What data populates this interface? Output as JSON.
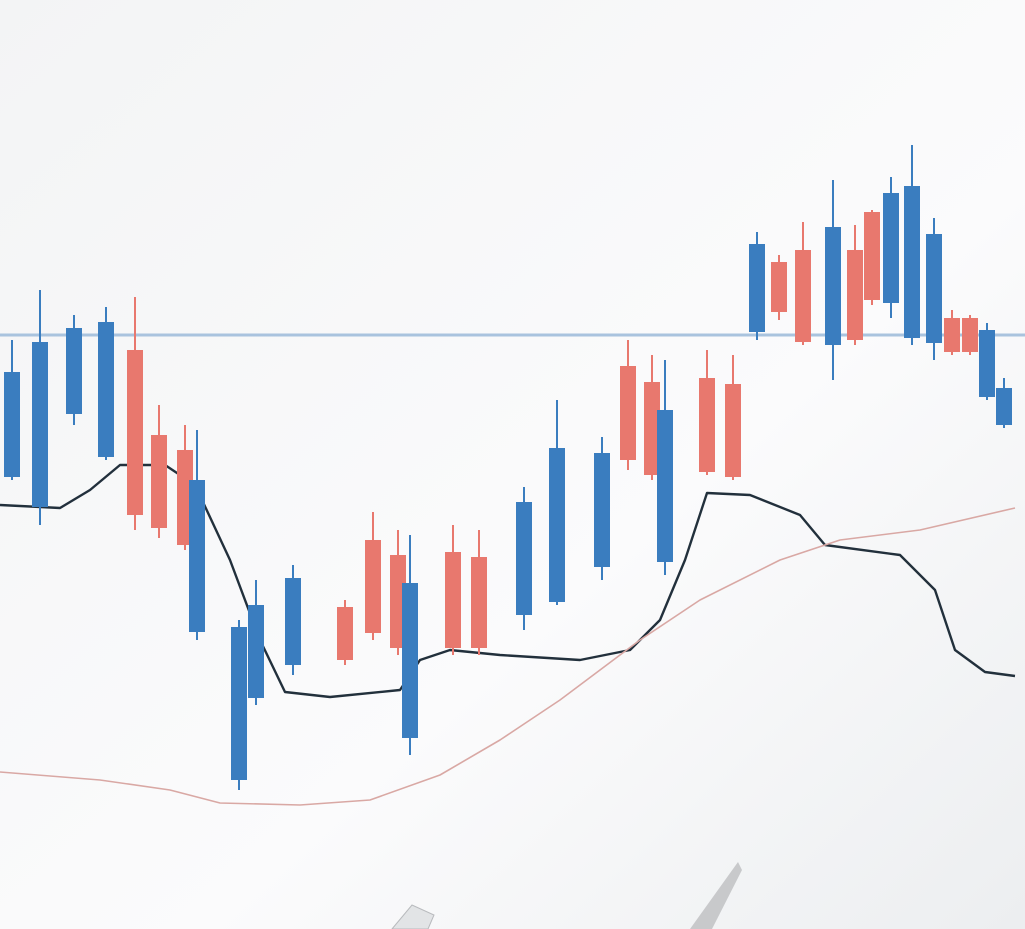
{
  "chart_data": {
    "type": "candlestick",
    "xlim": [
      0,
      102.5
    ],
    "ylim": [
      0,
      92.9
    ],
    "up_color": "#3a7dbf",
    "down_color": "#e8786e",
    "x": [
      1.2,
      4.0,
      7.4,
      10.6,
      13.5,
      15.9,
      18.5,
      19.7,
      23.9,
      25.6,
      29.3,
      34.5,
      37.3,
      39.8,
      41.0,
      45.3,
      47.9,
      52.4,
      55.7,
      60.2,
      62.8,
      65.2,
      66.5,
      70.7,
      73.3,
      75.7,
      77.9,
      80.3,
      83.3,
      85.5,
      87.2,
      89.1,
      91.2,
      93.4,
      95.2,
      97.0,
      98.7,
      100.4
    ],
    "open": [
      45.2,
      42.2,
      51.5,
      47.2,
      57.9,
      49.4,
      47.9,
      29.7,
      14.9,
      23.1,
      26.4,
      32.2,
      38.9,
      37.4,
      19.1,
      37.7,
      37.2,
      31.4,
      32.7,
      36.2,
      56.3,
      54.7,
      36.7,
      55.1,
      54.5,
      59.7,
      66.7,
      67.9,
      58.4,
      67.9,
      71.7,
      62.6,
      59.1,
      58.6,
      61.1,
      61.1,
      53.2,
      50.4
    ],
    "high": [
      58.9,
      63.9,
      61.4,
      62.2,
      63.2,
      52.4,
      50.4,
      49.9,
      30.9,
      34.9,
      36.4,
      32.9,
      41.7,
      39.9,
      39.4,
      40.4,
      39.9,
      44.2,
      52.9,
      49.2,
      58.9,
      57.4,
      56.9,
      57.9,
      57.4,
      69.7,
      67.4,
      70.7,
      74.9,
      70.4,
      71.9,
      75.2,
      78.4,
      71.1,
      61.9,
      61.4,
      60.6,
      55.1
    ],
    "low": [
      44.9,
      40.4,
      50.4,
      46.9,
      39.9,
      39.1,
      37.9,
      28.9,
      13.9,
      22.4,
      25.4,
      26.4,
      28.9,
      27.4,
      17.4,
      27.4,
      27.4,
      29.9,
      32.4,
      34.9,
      45.9,
      44.9,
      35.4,
      45.4,
      44.9,
      58.9,
      60.9,
      58.4,
      54.9,
      58.4,
      62.4,
      61.1,
      58.4,
      56.9,
      57.4,
      57.4,
      52.9,
      50.1
    ],
    "close": [
      55.7,
      58.7,
      60.1,
      60.7,
      41.4,
      40.1,
      38.4,
      44.9,
      30.2,
      32.4,
      35.1,
      26.9,
      29.6,
      28.1,
      34.6,
      28.1,
      28.1,
      42.7,
      48.1,
      47.6,
      46.9,
      45.4,
      51.9,
      45.7,
      45.2,
      68.5,
      61.7,
      58.7,
      70.2,
      58.9,
      62.9,
      73.6,
      74.3,
      69.5,
      57.7,
      57.7,
      59.9,
      54.1
    ],
    "hline": {
      "value": 59.4,
      "color": "#a9c3de"
    },
    "lines": [
      {
        "color": "#22303c",
        "x": [
          0,
          6,
          9,
          12,
          16.5,
          19.5,
          23,
          26,
          28.5,
          33,
          40,
          42,
          45,
          50,
          58,
          63,
          66,
          68.5,
          70.7,
          75,
          80,
          82.5,
          90,
          93.5,
          95.5,
          98.5,
          101.5
        ],
        "values": [
          42.4,
          42.1,
          43.9,
          46.4,
          46.4,
          44.4,
          36.9,
          28.9,
          23.7,
          23.2,
          23.9,
          26.9,
          27.9,
          27.4,
          26.9,
          27.9,
          30.9,
          36.9,
          43.6,
          43.4,
          41.4,
          38.4,
          37.4,
          33.9,
          27.9,
          25.7,
          25.3
        ]
      },
      {
        "color": "#d9a8a4",
        "x": [
          0,
          10,
          17,
          22,
          30,
          37,
          44,
          50,
          56,
          64,
          70,
          78,
          84,
          92,
          101.5
        ],
        "values": [
          15.7,
          14.9,
          13.9,
          12.6,
          12.4,
          12.9,
          15.4,
          18.9,
          22.9,
          28.9,
          32.9,
          36.9,
          38.9,
          39.9,
          42.1
        ]
      }
    ]
  }
}
